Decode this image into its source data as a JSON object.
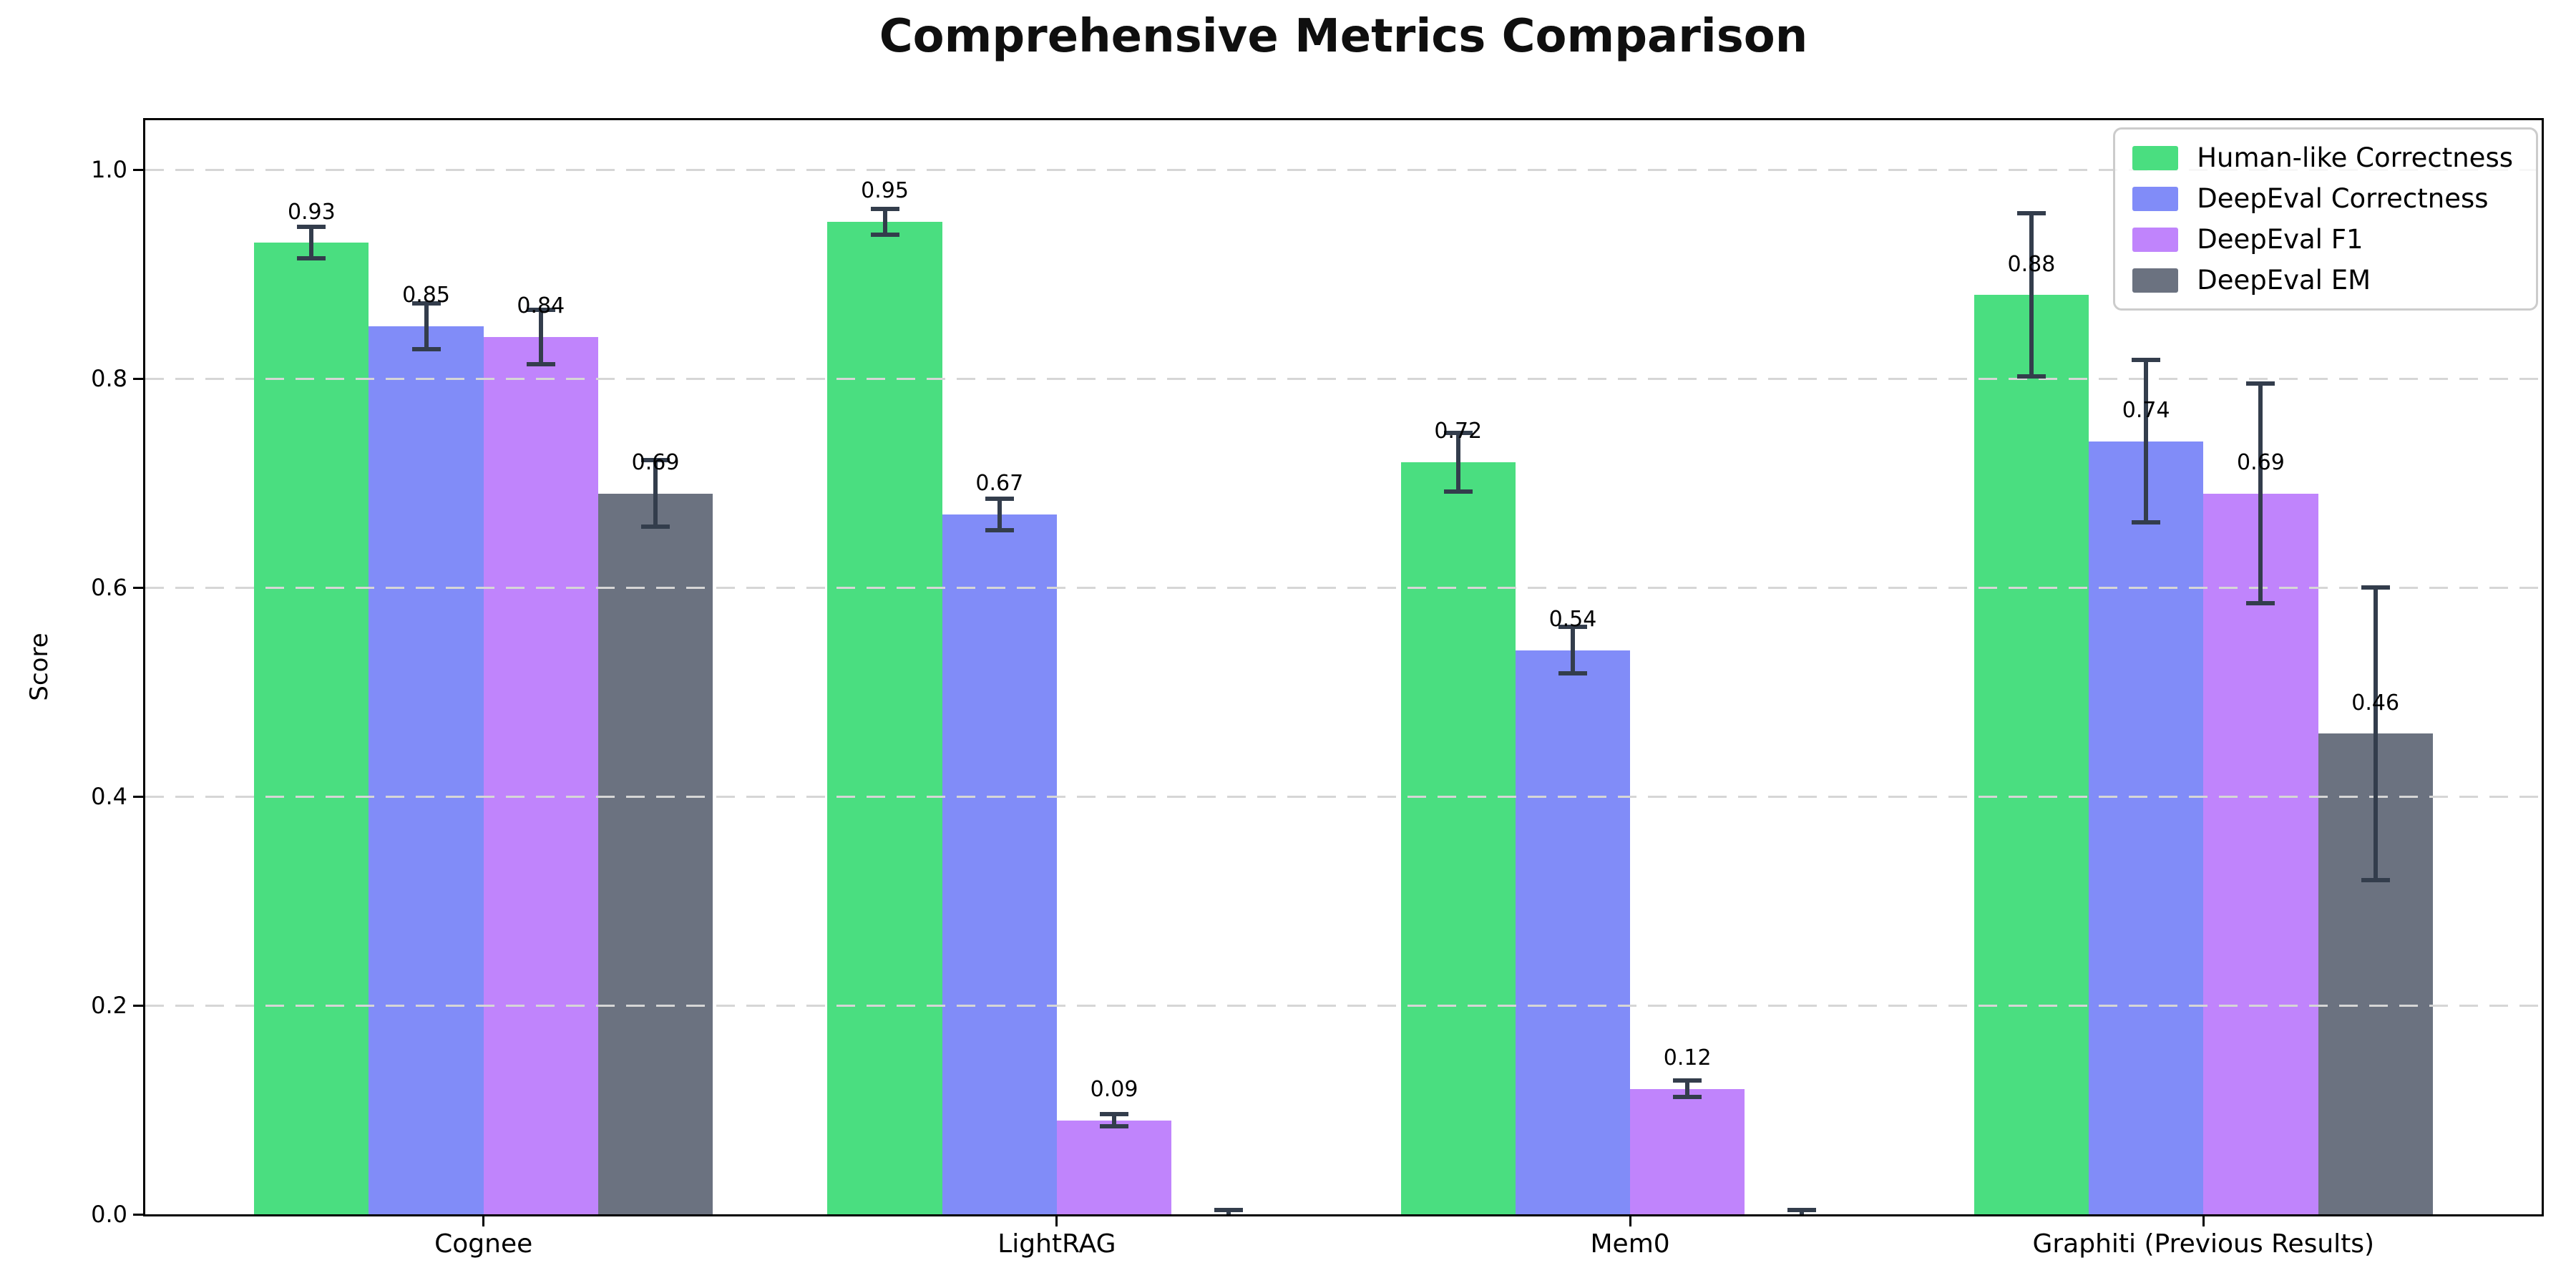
{
  "title": "Comprehensive Metrics Comparison",
  "ylabel": "Score",
  "chart_data": {
    "type": "bar",
    "categories": [
      "Cognee",
      "LightRAG",
      "Mem0",
      "Graphiti (Previous Results)"
    ],
    "series": [
      {
        "name": "Human-like Correctness",
        "color": "#4ade80",
        "values": [
          0.93,
          0.95,
          0.72,
          0.88
        ],
        "errors": [
          0.015,
          0.012,
          0.028,
          0.078
        ],
        "labels": [
          "0.93",
          "0.95",
          "0.72",
          "0.88"
        ]
      },
      {
        "name": "DeepEval Correctness",
        "color": "#818cf8",
        "values": [
          0.85,
          0.67,
          0.54,
          0.74
        ],
        "errors": [
          0.022,
          0.015,
          0.022,
          0.078
        ],
        "labels": [
          "0.85",
          "0.67",
          "0.54",
          "0.74"
        ]
      },
      {
        "name": "DeepEval F1",
        "color": "#c084fc",
        "values": [
          0.84,
          0.09,
          0.12,
          0.69
        ],
        "errors": [
          0.026,
          0.006,
          0.008,
          0.105
        ],
        "labels": [
          "0.84",
          "0.09",
          "0.12",
          "0.69"
        ]
      },
      {
        "name": "DeepEval EM",
        "color": "#6b7280",
        "values": [
          0.69,
          0.0,
          0.0,
          0.46
        ],
        "errors": [
          0.032,
          0.004,
          0.004,
          0.14
        ],
        "labels": [
          "0.69",
          "",
          "",
          "0.46"
        ]
      }
    ],
    "yticks": [
      0.0,
      0.2,
      0.4,
      0.6,
      0.8,
      1.0
    ],
    "ytick_labels": [
      "0.0",
      "0.2",
      "0.4",
      "0.6",
      "0.8",
      "1.0"
    ],
    "ylim": [
      0,
      1.047
    ],
    "grid": "horizontal-dashed",
    "legend_position": "upper right",
    "errorbar_color": "#333d4c",
    "bar_label_offset": 0.0175
  }
}
